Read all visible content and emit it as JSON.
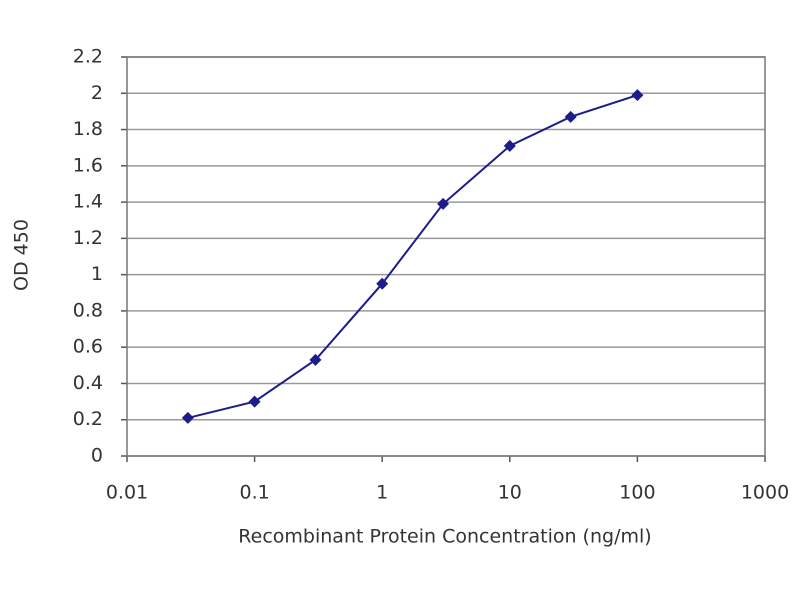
{
  "chart_data": {
    "type": "line",
    "xlabel": "Recombinant Protein Concentration (ng/ml)",
    "ylabel": "OD 450",
    "x": [
      0.03,
      0.1,
      0.3,
      1,
      3,
      10,
      30,
      100
    ],
    "values": [
      0.21,
      0.3,
      0.53,
      0.95,
      1.39,
      1.71,
      1.87,
      1.99
    ],
    "color": "#1c1c8a",
    "x_log": true,
    "xlim": [
      0.01,
      1000
    ],
    "xticks": [
      0.01,
      0.1,
      1,
      10,
      100,
      1000
    ],
    "ylim": [
      0,
      2.2
    ],
    "yticks": [
      0,
      0.2,
      0.4,
      0.6,
      0.8,
      1,
      1.2,
      1.4,
      1.6,
      1.8,
      2,
      2.2
    ],
    "grid": true
  }
}
